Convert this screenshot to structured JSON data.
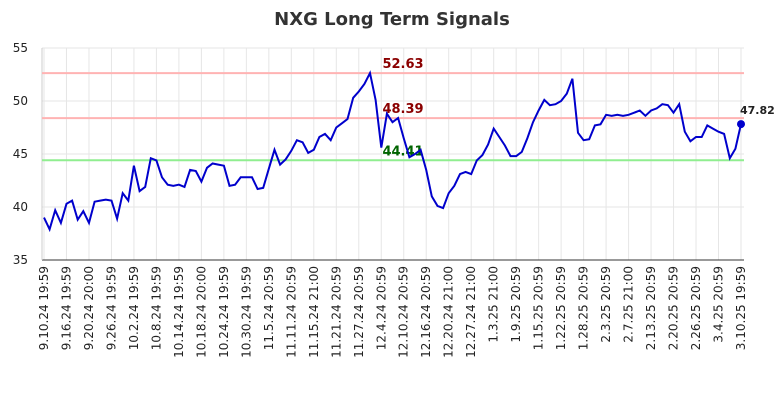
{
  "chart_data": {
    "type": "line",
    "title": "NXG Long Term Signals",
    "categories": [
      "9.10.24 19:59",
      null,
      null,
      null,
      "9.16.24 19:59",
      null,
      null,
      null,
      "9.20.24 20:00",
      null,
      null,
      null,
      "9.26.24 19:59",
      null,
      null,
      null,
      "10.2.24 19:59",
      null,
      null,
      null,
      "10.8.24 19:59",
      null,
      null,
      null,
      "10.14.24 19:59",
      null,
      null,
      null,
      "10.18.24 20:00",
      null,
      null,
      null,
      "10.24.24 19:59",
      null,
      null,
      null,
      "10.30.24 19:59",
      null,
      null,
      null,
      "11.5.24 20:59",
      null,
      null,
      null,
      "11.11.24 20:59",
      null,
      null,
      null,
      "11.15.24 21:00",
      null,
      null,
      null,
      "11.21.24 20:59",
      null,
      null,
      null,
      "11.27.24 20:59",
      null,
      null,
      null,
      "12.4.24 20:59",
      null,
      null,
      null,
      "12.10.24 20:59",
      null,
      null,
      null,
      "12.16.24 20:59",
      null,
      null,
      null,
      "12.20.24 21:00",
      null,
      null,
      null,
      "12.27.24 21:00",
      null,
      null,
      null,
      "1.3.25 21:00",
      null,
      null,
      null,
      "1.9.25 20:59",
      null,
      null,
      null,
      "1.15.25 20:59",
      null,
      null,
      null,
      "1.22.25 20:59",
      null,
      null,
      null,
      "1.28.25 20:59",
      null,
      null,
      null,
      "2.3.25 20:59",
      null,
      null,
      null,
      "2.7.25 21:00",
      null,
      null,
      null,
      "2.13.25 20:59",
      null,
      null,
      null,
      "2.20.25 20:59",
      null,
      null,
      null,
      "2.26.25 20:59",
      null,
      null,
      null,
      "3.4.25 20:59",
      null,
      null,
      null,
      "3.10.25 19:59"
    ],
    "values": [
      39.0,
      37.9,
      39.7,
      38.5,
      40.3,
      40.6,
      38.8,
      39.6,
      38.5,
      40.5,
      40.6,
      40.7,
      40.6,
      38.9,
      41.3,
      40.6,
      43.9,
      41.5,
      41.9,
      44.6,
      44.4,
      42.8,
      42.1,
      42.0,
      42.1,
      41.9,
      43.5,
      43.4,
      42.4,
      43.7,
      44.1,
      44.0,
      43.9,
      42.0,
      42.1,
      42.8,
      42.8,
      42.8,
      41.7,
      41.8,
      43.6,
      45.4,
      44.0,
      44.5,
      45.3,
      46.3,
      46.1,
      45.1,
      45.4,
      46.6,
      46.9,
      46.3,
      47.5,
      47.9,
      48.3,
      50.3,
      50.9,
      51.6,
      52.63,
      50.1,
      45.6,
      48.8,
      48.0,
      48.4,
      46.5,
      44.7,
      45.0,
      45.4,
      43.5,
      41.0,
      40.1,
      39.9,
      41.3,
      42.0,
      43.1,
      43.3,
      43.1,
      44.4,
      44.9,
      45.9,
      47.4,
      46.6,
      45.8,
      44.8,
      44.8,
      45.2,
      46.5,
      48.0,
      49.1,
      50.1,
      49.6,
      49.7,
      50.0,
      50.7,
      52.1,
      47.0,
      46.3,
      46.4,
      47.7,
      47.8,
      48.7,
      48.6,
      48.7,
      48.6,
      48.7,
      48.9,
      49.1,
      48.6,
      49.1,
      49.3,
      49.7,
      49.6,
      48.9,
      49.7,
      47.1,
      46.2,
      46.6,
      46.6,
      47.7,
      47.4,
      47.1,
      46.9,
      44.6,
      45.5,
      47.82
    ],
    "color": "#0000cc",
    "ylim": [
      35,
      55
    ],
    "yticks": [
      35,
      40,
      45,
      50,
      55
    ],
    "grid": true,
    "hlines": [
      {
        "value": 52.63,
        "color": "#ffb3b3",
        "text_color": "#8b0000"
      },
      {
        "value": 48.39,
        "color": "#ffb3b3",
        "text_color": "#8b0000"
      },
      {
        "value": 44.41,
        "color": "#90ee90",
        "text_color": "#006400"
      }
    ]
  }
}
